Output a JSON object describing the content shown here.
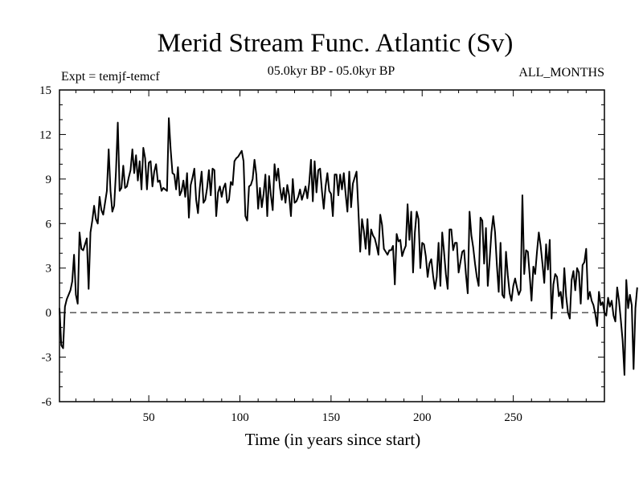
{
  "chart_data": {
    "type": "line",
    "title": "Merid Stream Func. Atlantic (Sv)",
    "subtitle_left": "Expt = temjf-temcf",
    "subtitle_center": "05.0kyr BP - 05.0kyr BP",
    "subtitle_right": "ALL_MONTHS",
    "xlabel": "Time (in years since start)",
    "ylabel": "",
    "xlim": [
      1,
      300
    ],
    "ylim": [
      -6,
      15
    ],
    "xticks": [
      50,
      100,
      150,
      200,
      250
    ],
    "yticks": [
      -6,
      -3,
      0,
      3,
      6,
      9,
      12,
      15
    ],
    "reference_line": {
      "y": 0,
      "style": "dashed"
    },
    "series": [
      {
        "name": "temjf-temcf",
        "x_start": 1,
        "x_step": 1,
        "values": [
          0.3,
          -2.2,
          -2.4,
          0.4,
          0.9,
          1.2,
          1.5,
          2.1,
          3.9,
          1.2,
          0.6,
          5.4,
          4.3,
          4.2,
          4.6,
          5.0,
          1.6,
          5.4,
          6.2,
          7.2,
          6.3,
          6.0,
          7.8,
          6.9,
          6.6,
          7.4,
          8.2,
          11.0,
          8.2,
          6.8,
          7.2,
          9.5,
          12.8,
          8.2,
          8.4,
          9.9,
          8.4,
          8.5,
          9.1,
          9.6,
          11.0,
          9.4,
          10.6,
          8.9,
          10.2,
          8.3,
          11.1,
          10.4,
          8.3,
          10.1,
          10.2,
          8.5,
          9.5,
          10.0,
          8.8,
          8.9,
          8.2,
          8.4,
          8.3,
          8.2,
          13.1,
          11.0,
          9.4,
          9.3,
          8.3,
          9.8,
          7.9,
          8.2,
          8.9,
          7.8,
          9.4,
          6.4,
          8.6,
          9.1,
          9.7,
          7.6,
          6.7,
          8.4,
          9.5,
          7.4,
          7.6,
          8.4,
          9.6,
          7.9,
          9.7,
          9.6,
          6.5,
          8.1,
          8.5,
          7.8,
          8.4,
          8.7,
          7.4,
          7.6,
          8.8,
          8.6,
          10.2,
          10.4,
          10.5,
          10.7,
          10.9,
          10.2,
          6.5,
          6.2,
          8.5,
          8.6,
          9.0,
          10.3,
          9.3,
          7.0,
          8.4,
          7.1,
          8.0,
          9.3,
          6.5,
          9.2,
          7.9,
          6.9,
          10.0,
          8.9,
          9.7,
          8.4,
          7.6,
          8.4,
          7.4,
          8.6,
          7.9,
          6.5,
          9.0,
          7.4,
          7.5,
          7.8,
          8.3,
          7.6,
          8.0,
          8.5,
          7.7,
          8.7,
          10.3,
          7.5,
          10.2,
          8.1,
          9.6,
          9.7,
          8.2,
          7.0,
          8.5,
          9.4,
          8.2,
          8.0,
          6.5,
          9.3,
          9.3,
          7.9,
          9.3,
          8.3,
          9.4,
          8.0,
          6.8,
          9.5,
          7.1,
          8.7,
          9.1,
          9.5,
          6.9,
          4.1,
          6.3,
          5.5,
          4.3,
          6.3,
          3.9,
          5.6,
          5.2,
          5.0,
          4.5,
          3.9,
          6.6,
          5.9,
          4.3,
          4.1,
          3.9,
          4.2,
          4.2,
          4.5,
          1.9,
          5.3,
          4.8,
          4.9,
          3.8,
          4.2,
          4.5,
          7.3,
          4.9,
          6.8,
          2.7,
          5.4,
          6.8,
          6.3,
          3.0,
          4.7,
          4.6,
          3.8,
          2.4,
          3.3,
          3.6,
          2.5,
          1.6,
          2.4,
          4.7,
          1.8,
          5.4,
          4.1,
          2.6,
          1.6,
          5.6,
          5.6,
          4.2,
          4.7,
          4.7,
          2.7,
          3.4,
          4.1,
          4.2,
          2.6,
          1.3,
          6.8,
          5.2,
          4.4,
          3.3,
          2.4,
          1.8,
          6.4,
          6.2,
          3.3,
          5.7,
          1.8,
          3.5,
          5.4,
          6.5,
          5.4,
          3.2,
          1.4,
          4.7,
          1.2,
          1.0,
          4.1,
          2.5,
          1.3,
          0.8,
          1.8,
          2.3,
          1.7,
          1.2,
          1.5,
          7.9,
          2.6,
          4.2,
          4.1,
          2.5,
          0.8,
          3.1,
          2.6,
          4.1,
          5.4,
          4.5,
          3.3,
          2.0,
          4.6,
          2.9,
          4.9,
          -0.4,
          1.9,
          2.6,
          2.4,
          1.1,
          1.4,
          0.3,
          3.0,
          1.1,
          0.0,
          -0.4,
          2.2,
          2.8,
          1.5,
          3.0,
          2.7,
          0.6,
          3.2,
          3.4,
          4.3,
          0.9,
          1.4,
          0.8,
          0.5,
          -0.1,
          -0.9,
          1.4,
          0.5,
          0.7,
          0.0,
          -0.2,
          1.0,
          0.4,
          0.8,
          -0.2,
          -0.6,
          1.7,
          0.8,
          -0.5,
          -1.9,
          -4.2,
          2.2,
          0.3,
          1.2,
          0.5,
          -3.8,
          0.3,
          1.7
        ]
      }
    ]
  }
}
